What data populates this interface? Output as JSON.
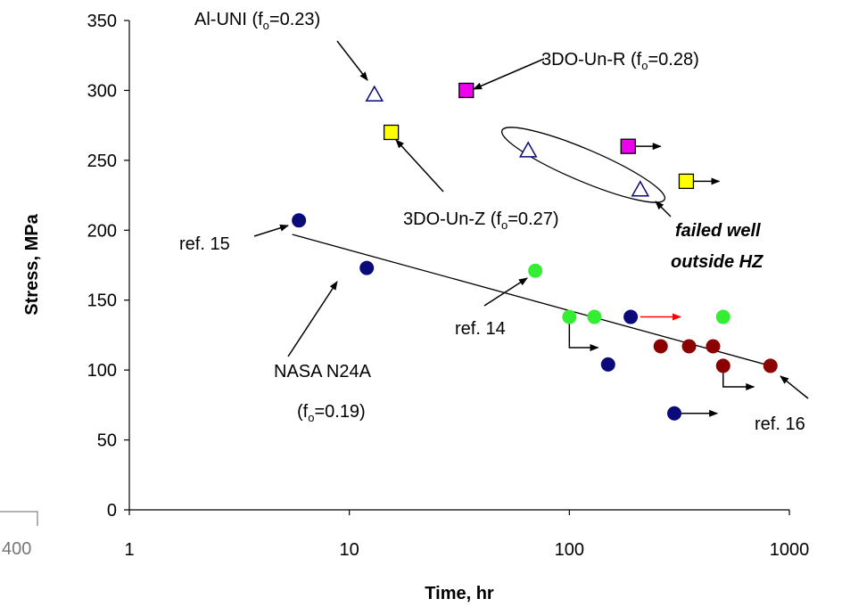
{
  "chart_data": {
    "type": "scatter",
    "xscale": "log",
    "xlim": [
      1,
      1000
    ],
    "ylim": [
      0,
      350
    ],
    "xticks": [
      "1",
      "10",
      "100",
      "1000"
    ],
    "yticks": [
      "0",
      "50",
      "100",
      "150",
      "200",
      "250",
      "300",
      "350"
    ],
    "xlabel": "Time, hr",
    "ylabel": "Stress, MPa",
    "grid": false,
    "colors": {
      "navy": "#0a0a7a",
      "green": "#33ee33",
      "darkred": "#8b0000",
      "magenta": "#ee00ee",
      "yellow": "#ffff00",
      "triangle_edge": "#0a0a7a",
      "runout_red": "#ff0000"
    },
    "series": [
      {
        "marker": "circle",
        "color": "navy",
        "points": [
          [
            5.9,
            207
          ],
          [
            12,
            173
          ],
          [
            150,
            104
          ],
          [
            190,
            138
          ],
          [
            300,
            69
          ]
        ]
      },
      {
        "marker": "circle",
        "color": "green",
        "points": [
          [
            70,
            171
          ],
          [
            100,
            138
          ],
          [
            130,
            138
          ],
          [
            500,
            138
          ]
        ]
      },
      {
        "marker": "circle",
        "color": "darkred",
        "points": [
          [
            260,
            117
          ],
          [
            350,
            117
          ],
          [
            450,
            117
          ],
          [
            500,
            103
          ],
          [
            820,
            103
          ]
        ]
      },
      {
        "marker": "square",
        "color": "magenta",
        "points": [
          [
            34,
            300
          ],
          [
            185,
            260
          ]
        ]
      },
      {
        "marker": "square",
        "color": "yellow",
        "points": [
          [
            15.5,
            270
          ],
          [
            340,
            235
          ]
        ]
      },
      {
        "marker": "triangle",
        "color": "triangle_edge",
        "points": [
          [
            13,
            297
          ],
          [
            65,
            257
          ],
          [
            210,
            229
          ]
        ]
      }
    ],
    "trendline": [
      [
        5.5,
        197
      ],
      [
        820,
        103
      ]
    ],
    "runouts": [
      {
        "from": [
          185,
          260
        ],
        "to": [
          260,
          260
        ],
        "color": "black"
      },
      {
        "from": [
          340,
          235
        ],
        "to": [
          480,
          235
        ],
        "color": "black"
      },
      {
        "from": [
          210,
          138
        ],
        "to": [
          320,
          138
        ],
        "color": "runout_red"
      },
      {
        "from": [
          300,
          69
        ],
        "to": [
          470,
          69
        ],
        "color": "black"
      }
    ],
    "elbow_runouts": [
      {
        "from": [
          100,
          138
        ],
        "down_to": 116,
        "right_to": 135
      },
      {
        "from": [
          500,
          103
        ],
        "down_to": 88,
        "right_to": 690
      }
    ],
    "annotations": {
      "al_uni": {
        "base": "Al-UNI (f",
        "sub": "o",
        "tail": "=0.23)"
      },
      "r3do_r": {
        "base": "3DO-Un-R (f",
        "sub": "o",
        "tail": "=0.28)"
      },
      "r3do_z": {
        "base": "3DO-Un-Z (f",
        "sub": "o",
        "tail": "=0.27)"
      },
      "ref15": "ref. 15",
      "ref14": "ref. 14",
      "ref16": "ref. 16",
      "nasa_line1": "NASA N24A",
      "nasa_line2": {
        "base": "(f",
        "sub": "o",
        "tail": "=0.19)"
      },
      "failed_line1": "failed well",
      "failed_line2": "outside HZ"
    },
    "fragment_label": "400"
  }
}
